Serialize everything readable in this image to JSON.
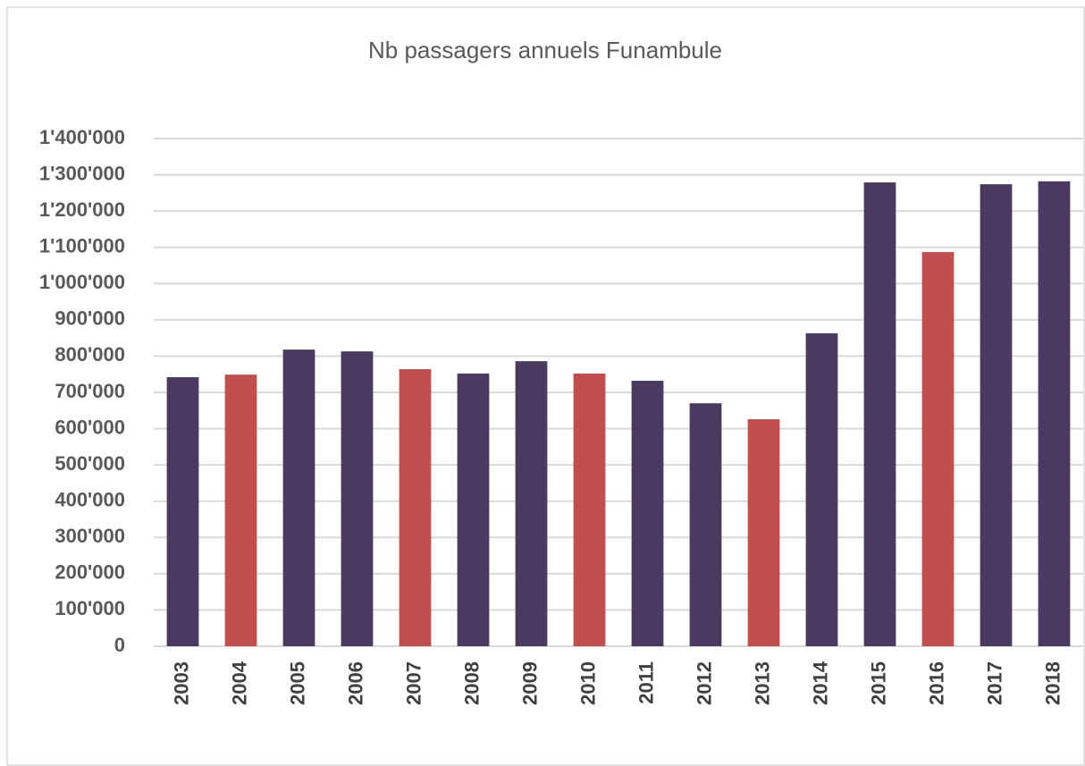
{
  "chart_data": {
    "type": "bar",
    "title": "Nb passagers annuels Funambule",
    "categories": [
      "2003",
      "2004",
      "2005",
      "2006",
      "2007",
      "2008",
      "2009",
      "2010",
      "2011",
      "2012",
      "2013",
      "2014",
      "2015",
      "2016",
      "2017",
      "2018"
    ],
    "values": [
      742000,
      749000,
      818000,
      813000,
      764000,
      752000,
      786000,
      752000,
      732000,
      670000,
      626000,
      863000,
      1279000,
      1087000,
      1274000,
      1282000
    ],
    "colors": [
      "#4b3a5f",
      "#c0504d",
      "#4b3a5f",
      "#4b3a5f",
      "#c0504d",
      "#4b3a5f",
      "#4b3a5f",
      "#c0504d",
      "#4b3a5f",
      "#4b3a5f",
      "#c0504d",
      "#4b3a5f",
      "#4b3a5f",
      "#c0504d",
      "#4b3a5f",
      "#4b3a5f"
    ],
    "ylim": [
      0,
      1400000
    ],
    "yticks": [
      0,
      {
        "value": 100000,
        "label": "100'000"
      },
      {
        "value": 200000,
        "label": "200'000"
      },
      {
        "value": 300000,
        "label": "300'000"
      },
      {
        "value": 400000,
        "label": "400'000"
      },
      {
        "value": 500000,
        "label": "500'000"
      },
      {
        "value": 600000,
        "label": "600'000"
      },
      {
        "value": 700000,
        "label": "700'000"
      },
      {
        "value": 800000,
        "label": "800'000"
      },
      {
        "value": 900000,
        "label": "900'000"
      },
      {
        "value": 1000000,
        "label": "1'000'000"
      },
      {
        "value": 1100000,
        "label": "1'100'000"
      },
      {
        "value": 1200000,
        "label": "1'200'000"
      },
      {
        "value": 1300000,
        "label": "1'300'000"
      },
      {
        "value": 1400000,
        "label": "1'400'000"
      }
    ],
    "grid": true
  }
}
